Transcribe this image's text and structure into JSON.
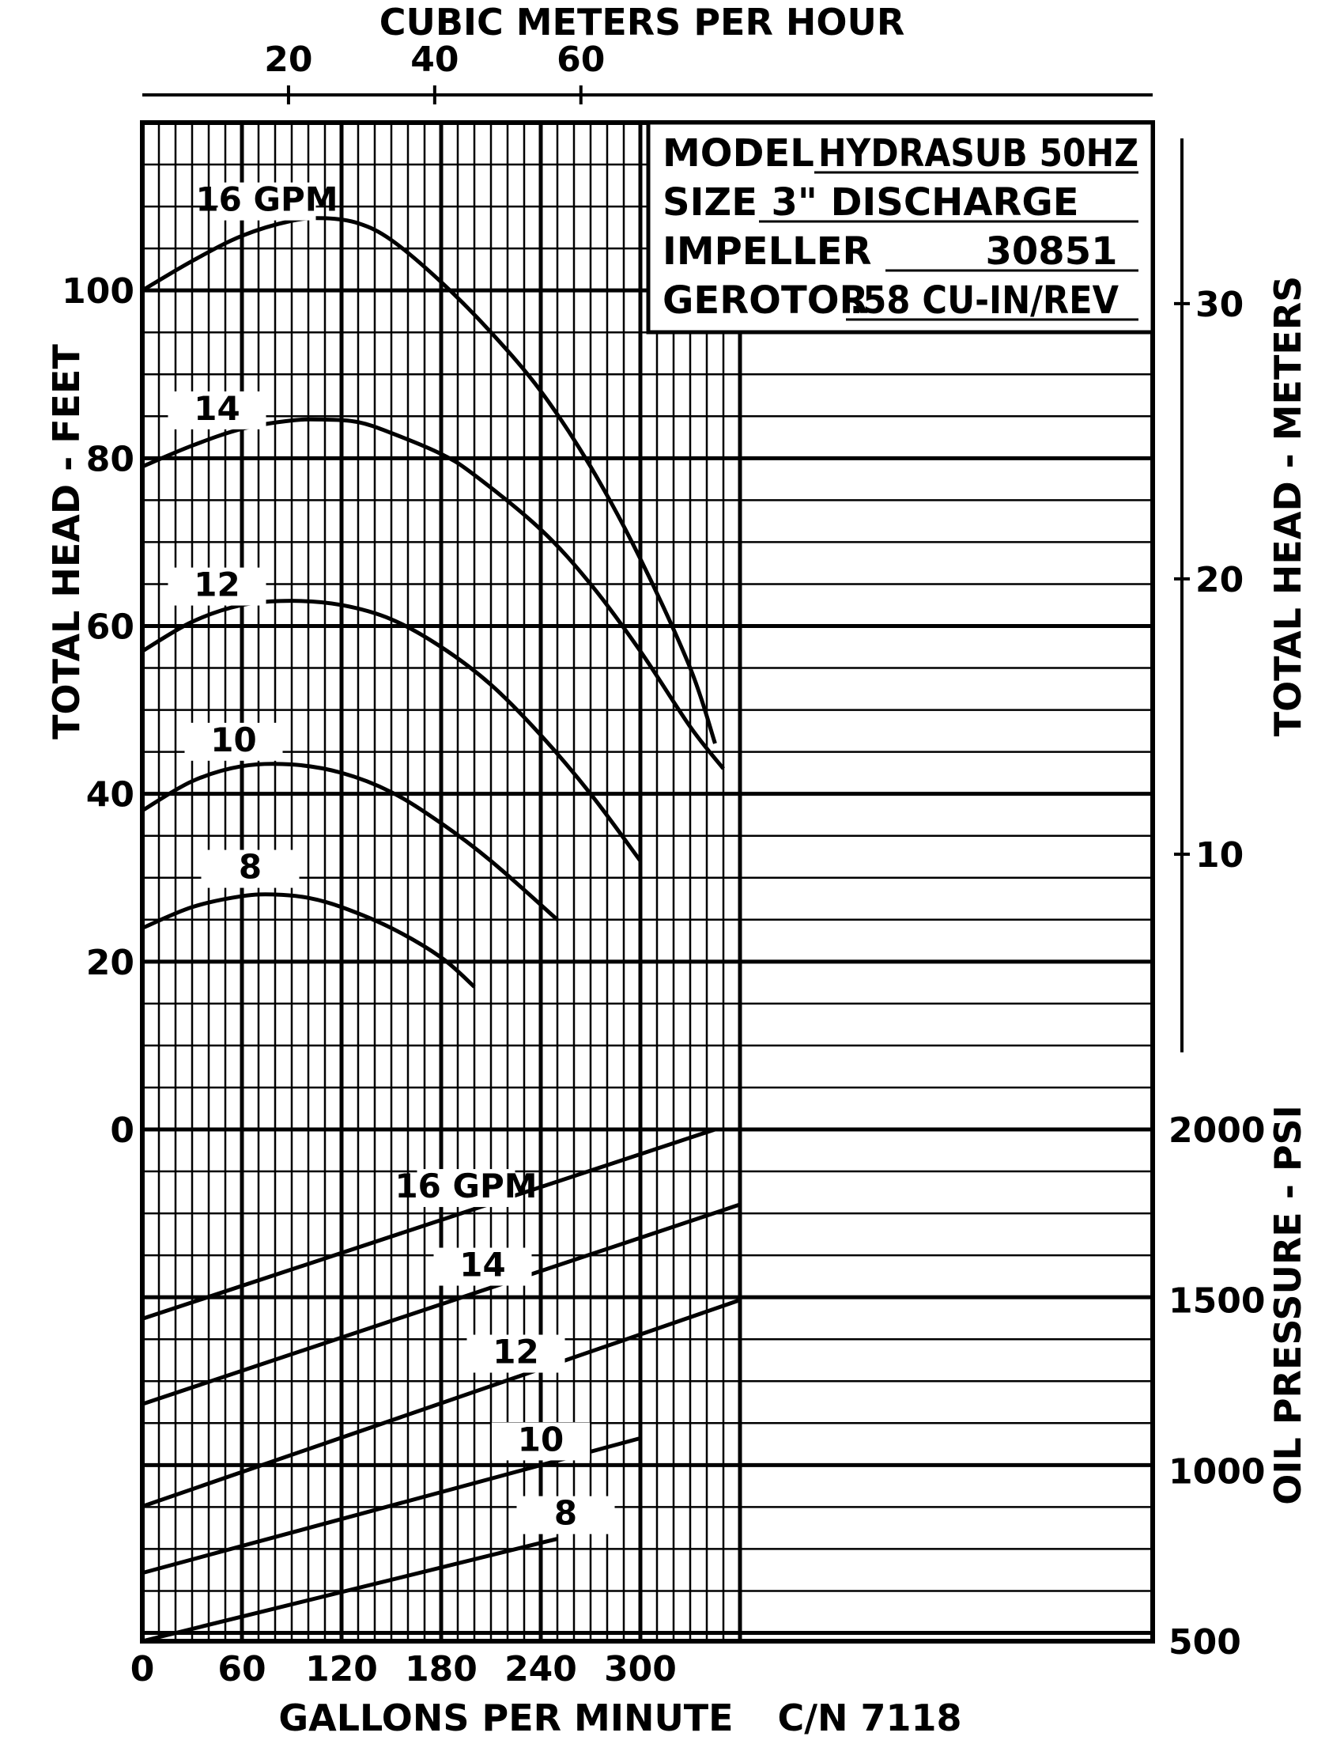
{
  "chart_data": {
    "type": "line",
    "title": "",
    "top_axis_label": "CUBIC METERS PER HOUR",
    "top_ticks": [
      "20",
      "40",
      "60"
    ],
    "xlabel": "GALLONS PER MINUTE",
    "catalog_number": "C/N 7118",
    "x_ticks": [
      "0",
      "60",
      "120",
      "180",
      "240",
      "300"
    ],
    "xlim": [
      0,
      360
    ],
    "ylabel_left": "TOTAL HEAD - FEET",
    "y_ticks_head_ft": [
      "0",
      "20",
      "40",
      "60",
      "80",
      "100"
    ],
    "ylim_head_ft": [
      0,
      100
    ],
    "ylabel_right_top": "TOTAL HEAD - METERS",
    "y_ticks_head_m": [
      "10",
      "20",
      "30"
    ],
    "ylabel_right_bottom": "OIL PRESSURE - PSI",
    "y_ticks_psi": [
      "500",
      "1000",
      "1500",
      "2000"
    ],
    "ylim_psi": [
      500,
      2000
    ],
    "grid": true,
    "model_box": {
      "model_label": "MODEL",
      "model_value": "HYDRASUB 50HZ",
      "size_label": "SIZE",
      "size_value": "3\" DISCHARGE",
      "impeller_label": "IMPELLER",
      "impeller_value": "30851",
      "gerotor_label": "GEROTOR",
      "gerotor_value": ".58 CU-IN/REV"
    },
    "head_series": [
      {
        "name": "16 GPM",
        "x": [
          0,
          30,
          60,
          90,
          110,
          130,
          150,
          180,
          210,
          240,
          270,
          300,
          330,
          345
        ],
        "y": [
          100,
          103.5,
          106.5,
          108.3,
          108.6,
          108,
          106,
          101,
          95,
          88,
          79,
          68,
          55,
          46
        ]
      },
      {
        "name": "14",
        "x": [
          0,
          30,
          60,
          90,
          110,
          130,
          150,
          180,
          200,
          240,
          270,
          300,
          330,
          350
        ],
        "y": [
          79,
          81.5,
          83.5,
          84.5,
          84.6,
          84.3,
          83,
          80.5,
          78,
          71.5,
          65,
          57,
          48,
          43
        ]
      },
      {
        "name": "12",
        "x": [
          0,
          30,
          60,
          90,
          120,
          150,
          180,
          210,
          240,
          270,
          300
        ],
        "y": [
          57,
          60.5,
          62.5,
          63,
          62.5,
          60.8,
          57.5,
          53,
          47,
          40,
          32
        ]
      },
      {
        "name": "10",
        "x": [
          0,
          30,
          60,
          90,
          120,
          150,
          180,
          210,
          250
        ],
        "y": [
          38,
          41.5,
          43.3,
          43.5,
          42.5,
          40.2,
          36.5,
          32,
          25
        ]
      },
      {
        "name": "8",
        "x": [
          0,
          30,
          60,
          80,
          100,
          120,
          150,
          180,
          200
        ],
        "y": [
          24,
          26.5,
          27.8,
          28,
          27.6,
          26.5,
          24,
          20.5,
          17
        ]
      }
    ],
    "pressure_series": [
      {
        "name": "16 GPM",
        "x": [
          0,
          345
        ],
        "y": [
          1445,
          2000
        ]
      },
      {
        "name": "14",
        "x": [
          0,
          360
        ],
        "y": [
          1195,
          1780
        ]
      },
      {
        "name": "12",
        "x": [
          0,
          360
        ],
        "y": [
          895,
          1500
        ]
      },
      {
        "name": "10",
        "x": [
          0,
          300
        ],
        "y": [
          700,
          1095
        ]
      },
      {
        "name": "8",
        "x": [
          0,
          250
        ],
        "y": [
          500,
          800
        ]
      }
    ]
  }
}
